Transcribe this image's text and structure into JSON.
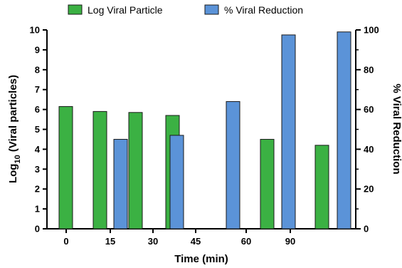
{
  "chart_data": {
    "type": "bar",
    "categories": [
      "0",
      "15",
      "30",
      "45",
      "60",
      "90"
    ],
    "xlabel": "Time (min)",
    "ylabel_left": "Log10 (Viral particles)",
    "ylabel_left_main": "Log",
    "ylabel_left_sub": "10",
    "ylabel_left_rest": " (Viral particles)",
    "ylabel_right": "% Viral Reduction",
    "ylim_left": [
      0,
      10
    ],
    "ylim_right": [
      0,
      100
    ],
    "yticks_left": [
      "0",
      "1",
      "2",
      "3",
      "4",
      "5",
      "6",
      "7",
      "8",
      "9",
      "10"
    ],
    "yticks_right": [
      "0",
      "20",
      "40",
      "60",
      "80",
      "100"
    ],
    "legend_position": "top",
    "series": [
      {
        "name": "Log Viral Particle",
        "axis": "left",
        "color": "#3bb143",
        "values": [
          6.15,
          5.9,
          5.85,
          5.7,
          4.5,
          4.2
        ]
      },
      {
        "name": "% Viral Reduction",
        "axis": "right",
        "color": "#5b93d8",
        "values": [
          null,
          45,
          47,
          64,
          97.5,
          99
        ]
      }
    ]
  }
}
